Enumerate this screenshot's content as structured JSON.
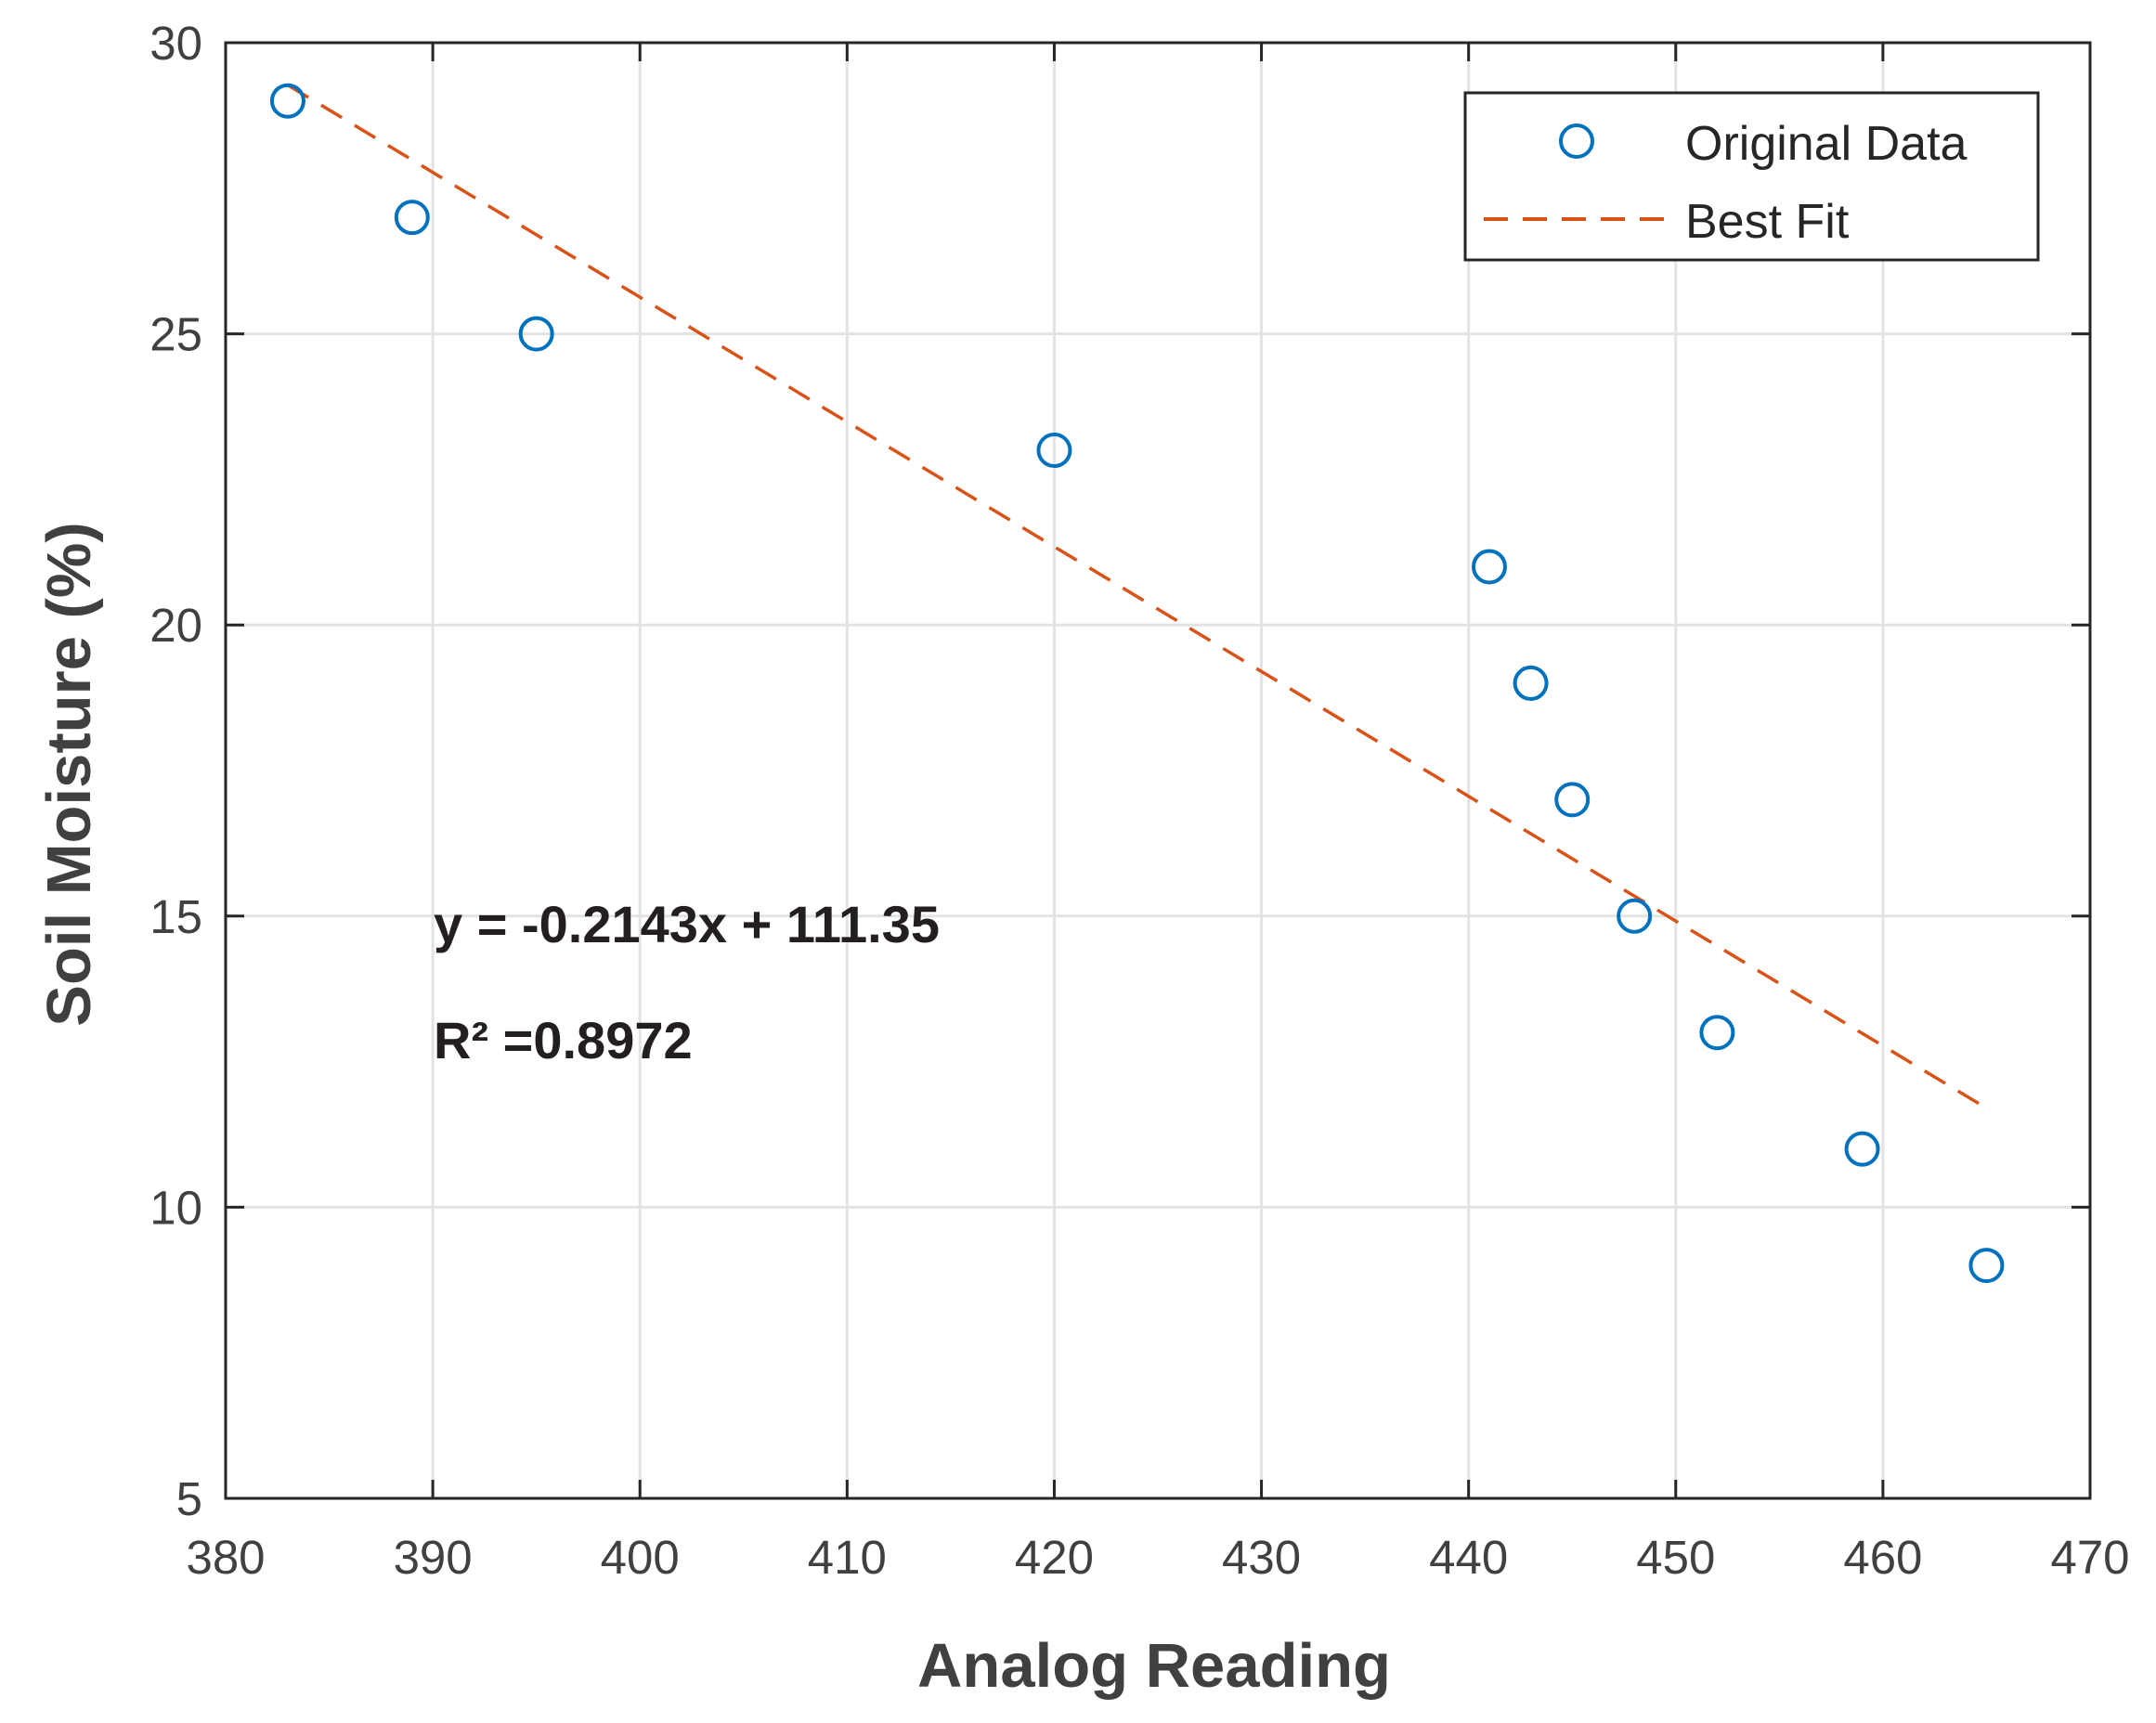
{
  "chart_data": {
    "type": "scatter",
    "title": "",
    "xlabel": "Analog Reading",
    "ylabel": "Soil Moisture (%)",
    "xlim": [
      380,
      470
    ],
    "ylim": [
      5,
      30
    ],
    "xticks": [
      380,
      390,
      400,
      410,
      420,
      430,
      440,
      450,
      460,
      470
    ],
    "yticks": [
      5,
      10,
      15,
      20,
      25,
      30
    ],
    "grid": true,
    "legend_position": "top-right",
    "series": [
      {
        "name": "Original Data",
        "kind": "scatter",
        "marker": "open-circle",
        "color": "#0072bd",
        "x": [
          383,
          389,
          395,
          420,
          441,
          443,
          445,
          448,
          452,
          459,
          465
        ],
        "y": [
          29,
          27,
          25,
          23,
          21,
          19,
          17,
          15,
          13,
          11,
          9
        ]
      },
      {
        "name": "Best Fit",
        "kind": "line",
        "style": "dashed",
        "color": "#d95319",
        "slope": -0.2143,
        "intercept": 111.35,
        "x_range": [
          383,
          465
        ]
      }
    ],
    "annotations": [
      {
        "text": "y = -0.2143x + 111.35"
      },
      {
        "text": "R² =0.8972"
      }
    ]
  }
}
